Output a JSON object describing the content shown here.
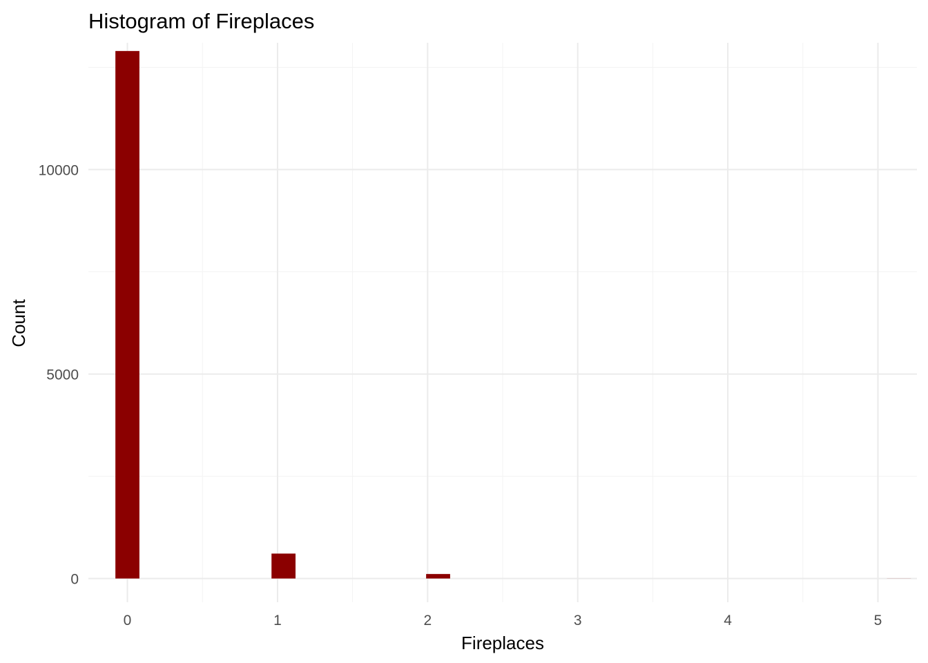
{
  "chart_data": {
    "type": "bar",
    "title": "Histogram of Fireplaces",
    "xlabel": "Fireplaces",
    "ylabel": "Count",
    "bar_color": "#8b0000",
    "grid": true,
    "legend": "none",
    "xlim": [
      -0.26,
      5.26
    ],
    "ylim": [
      -580,
      13100
    ],
    "x_ticks": [
      0,
      1,
      2,
      3,
      4,
      5
    ],
    "y_ticks": [
      0,
      5000,
      10000
    ],
    "bin_width": 0.16,
    "bins": [
      {
        "x": 0,
        "count": 12900
      },
      {
        "x": 1.04,
        "count": 610
      },
      {
        "x": 2.07,
        "count": 110
      },
      {
        "x": 3.11,
        "count": 0
      },
      {
        "x": 4.14,
        "count": 0
      },
      {
        "x": 5.14,
        "count": 2
      }
    ]
  }
}
